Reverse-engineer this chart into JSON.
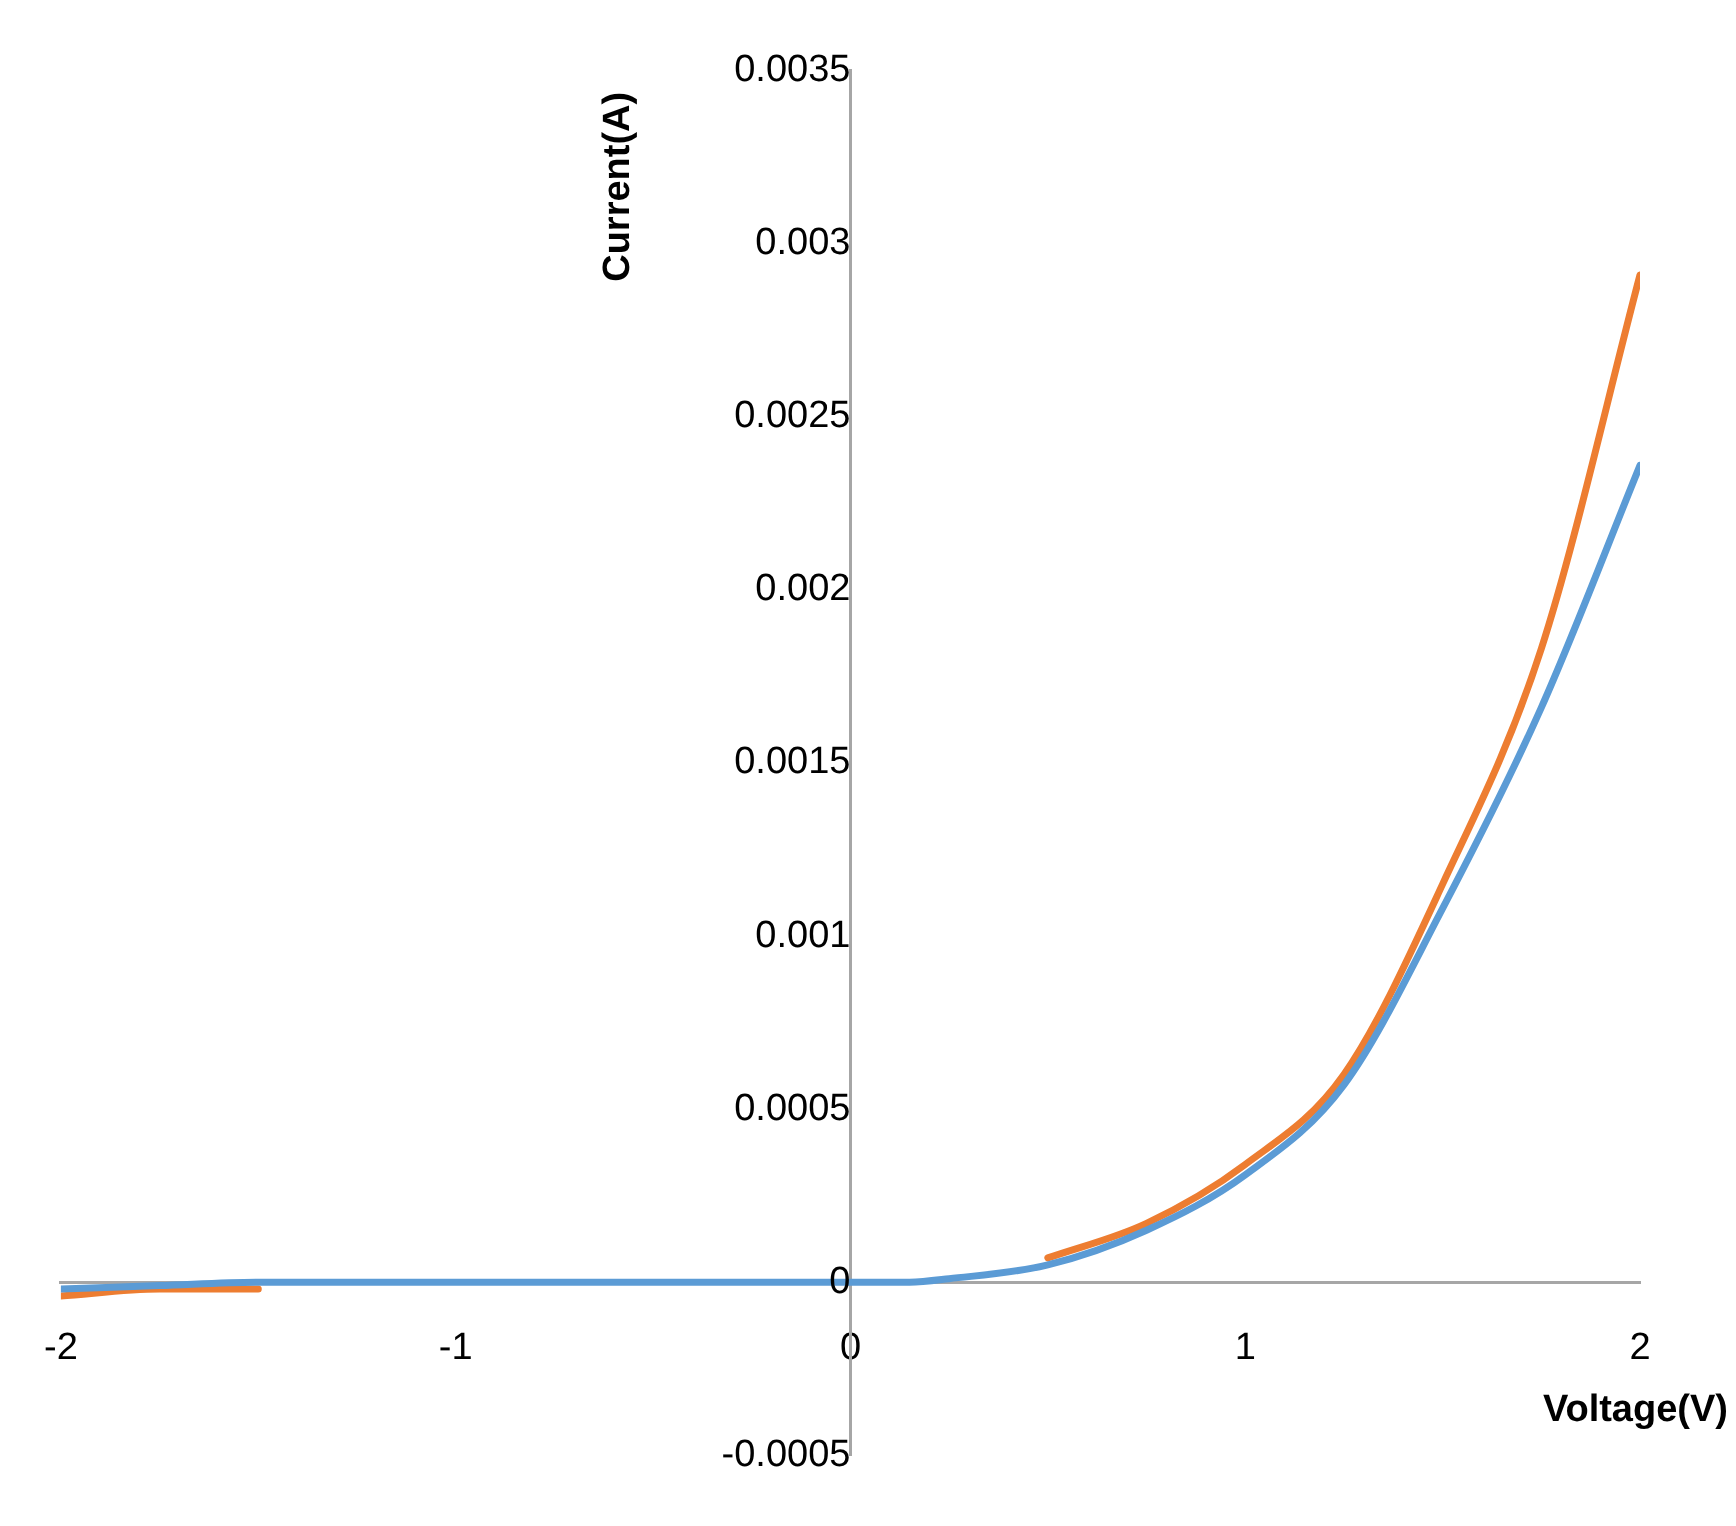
{
  "chart_data": {
    "type": "line",
    "xlabel": "Voltage(V)",
    "ylabel": "Current(A)",
    "x": [
      -2,
      -1.75,
      -1.5,
      -1.25,
      -1,
      -0.75,
      -0.5,
      -0.25,
      0,
      0.15,
      0.25,
      0.5,
      0.75,
      1,
      1.25,
      1.5,
      1.75,
      2
    ],
    "series": [
      {
        "color": "#ed7d31",
        "values": [
          -4e-05,
          -2e-05,
          -2e-05,
          null,
          null,
          null,
          null,
          null,
          null,
          null,
          null,
          7e-05,
          0.00017,
          0.00034,
          0.0006,
          0.00115,
          0.00183,
          0.00291
        ]
      },
      {
        "color": "#5b9bd5",
        "values": [
          -2e-05,
          -1e-05,
          0,
          0,
          0,
          0,
          0,
          0,
          0,
          0,
          1e-05,
          5e-05,
          0.00015,
          0.00031,
          0.00057,
          0.00108,
          0.00166,
          0.00236
        ]
      }
    ],
    "xlim": [
      -2,
      2
    ],
    "xticks": [
      -2,
      -1,
      0,
      1,
      2
    ],
    "ylim": [
      -0.0005,
      0.0035
    ],
    "yticks": [
      -0.0005,
      0,
      0.0005,
      0.001,
      0.0015,
      0.002,
      0.0025,
      0.003,
      0.0035
    ],
    "grid": false,
    "legend": false,
    "marker": "none",
    "line_style": "solid"
  }
}
